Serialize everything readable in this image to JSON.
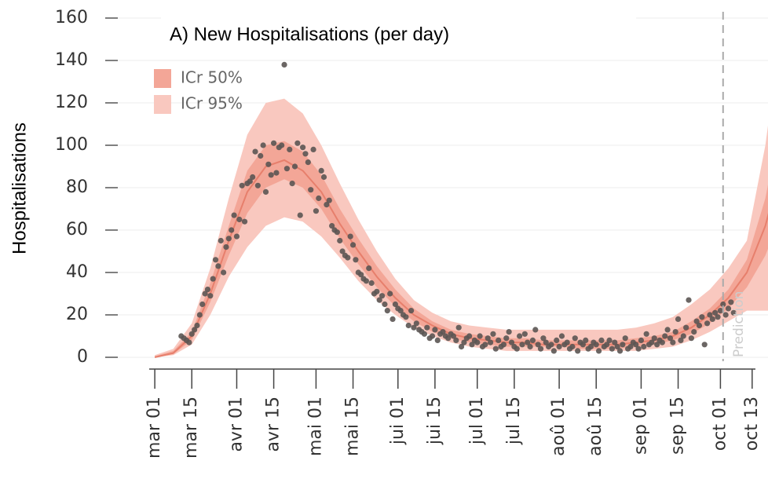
{
  "chart_data": {
    "type": "scatter",
    "subtitle": "A) New Hospitalisations (per day)",
    "ylabel": "Hospitalisations",
    "xlim": [
      -14,
      232
    ],
    "ylim": [
      0,
      160
    ],
    "yticks": [
      0,
      20,
      40,
      60,
      80,
      100,
      120,
      140,
      160
    ],
    "xticks": [
      {
        "value": 0,
        "label": "mar 01"
      },
      {
        "value": 14,
        "label": "mar 15"
      },
      {
        "value": 31,
        "label": "avr 01"
      },
      {
        "value": 45,
        "label": "avr 15"
      },
      {
        "value": 61,
        "label": "mai 01"
      },
      {
        "value": 75,
        "label": "mai 15"
      },
      {
        "value": 92,
        "label": "jui 01"
      },
      {
        "value": 106,
        "label": "jui 15"
      },
      {
        "value": 122,
        "label": "jul 01"
      },
      {
        "value": 136,
        "label": "jul 15"
      },
      {
        "value": 153,
        "label": "aoû 01"
      },
      {
        "value": 167,
        "label": "aoû 15"
      },
      {
        "value": 184,
        "label": "sep 01"
      },
      {
        "value": 198,
        "label": "sep 15"
      },
      {
        "value": 214,
        "label": "oct 01"
      },
      {
        "value": 226,
        "label": "oct 13"
      }
    ],
    "grid": true,
    "prediction": {
      "x": 215,
      "label": "Prediction"
    },
    "points": {
      "color": "#5b5553",
      "x": [
        10,
        11,
        12,
        13,
        14,
        15,
        16,
        17,
        18,
        19,
        20,
        21,
        22,
        23,
        24,
        25,
        26,
        27,
        28,
        29,
        30,
        31,
        32,
        33,
        34,
        35,
        36,
        37,
        38,
        39,
        40,
        41,
        42,
        43,
        44,
        45,
        46,
        47,
        48,
        49,
        50,
        51,
        52,
        53,
        54,
        55,
        56,
        57,
        58,
        59,
        60,
        61,
        62,
        63,
        64,
        65,
        66,
        67,
        68,
        69,
        70,
        71,
        72,
        73,
        74,
        75,
        76,
        77,
        78,
        79,
        80,
        81,
        82,
        83,
        84,
        85,
        86,
        87,
        88,
        89,
        90,
        91,
        92,
        93,
        94,
        95,
        96,
        97,
        98,
        99,
        100,
        101,
        102,
        103,
        104,
        105,
        106,
        107,
        108,
        109,
        110,
        111,
        112,
        113,
        114,
        115,
        116,
        117,
        118,
        119,
        120,
        121,
        122,
        123,
        124,
        125,
        126,
        127,
        128,
        129,
        130,
        131,
        132,
        133,
        134,
        135,
        136,
        137,
        138,
        139,
        140,
        141,
        142,
        143,
        144,
        145,
        146,
        147,
        148,
        149,
        150,
        151,
        152,
        153,
        154,
        155,
        156,
        157,
        158,
        159,
        160,
        161,
        162,
        163,
        164,
        165,
        166,
        167,
        168,
        169,
        170,
        171,
        172,
        173,
        174,
        175,
        176,
        177,
        178,
        179,
        180,
        181,
        182,
        183,
        184,
        185,
        186,
        187,
        188,
        189,
        190,
        191,
        192,
        193,
        194,
        195,
        196,
        197,
        198,
        199,
        200,
        201,
        202,
        203,
        204,
        205,
        206,
        207,
        208,
        209,
        210,
        211,
        212,
        213,
        214,
        215,
        216,
        217,
        218,
        219
      ],
      "values": [
        10,
        9,
        8,
        7,
        11,
        13,
        15,
        20,
        25,
        30,
        32,
        29,
        37,
        46,
        43,
        55,
        40,
        52,
        56,
        60,
        67,
        57,
        65,
        81,
        64,
        82,
        83,
        85,
        97,
        81,
        95,
        100,
        78,
        91,
        86,
        101,
        87,
        99,
        100,
        138,
        89,
        98,
        82,
        90,
        101,
        67,
        99,
        96,
        92,
        79,
        98,
        69,
        75,
        88,
        85,
        72,
        74,
        62,
        60,
        59,
        55,
        50,
        48,
        47,
        57,
        53,
        46,
        40,
        39,
        37,
        36,
        42,
        35,
        30,
        31,
        27,
        29,
        25,
        22,
        30,
        18,
        25,
        23,
        22,
        20,
        19,
        15,
        22,
        14,
        16,
        13,
        12,
        11,
        14,
        9,
        10,
        13,
        8,
        11,
        12,
        10,
        9,
        11,
        10,
        8,
        14,
        5,
        7,
        9,
        10,
        6,
        8,
        7,
        10,
        5,
        6,
        9,
        7,
        11,
        4,
        8,
        5,
        6,
        9,
        12,
        7,
        5,
        4,
        10,
        6,
        11,
        7,
        5,
        8,
        13,
        6,
        4,
        9,
        7,
        5,
        6,
        3,
        8,
        5,
        10,
        6,
        7,
        4,
        5,
        9,
        3,
        7,
        6,
        8,
        4,
        5,
        7,
        6,
        3,
        8,
        5,
        6,
        8,
        4,
        7,
        5,
        3,
        6,
        9,
        4,
        5,
        7,
        6,
        4,
        8,
        5,
        11,
        6,
        7,
        9,
        6,
        8,
        7,
        10,
        13,
        9,
        7,
        12,
        18,
        8,
        10,
        14,
        27,
        9,
        12,
        17,
        15,
        19,
        6,
        16,
        20,
        18,
        21,
        19,
        22,
        25,
        20,
        23,
        26,
        21
      ]
    },
    "band_x": [
      0,
      7,
      14,
      21,
      28,
      35,
      42,
      49,
      56,
      63,
      70,
      77,
      84,
      91,
      98,
      105,
      112,
      119,
      126,
      133,
      140,
      147,
      154,
      161,
      168,
      175,
      182,
      189,
      196,
      203,
      210,
      217,
      224,
      231,
      238
    ],
    "intervals": [
      {
        "name": "ICr 95%",
        "color": "#f9c8bf",
        "upper": [
          1,
          4,
          16,
          42,
          75,
          105,
          120,
          122,
          115,
          100,
          82,
          65,
          50,
          37,
          27,
          21,
          17,
          15,
          14,
          13,
          13,
          13,
          13,
          13,
          13,
          13,
          14,
          16,
          19,
          25,
          32,
          42,
          55,
          100,
          165
        ],
        "lower": [
          0,
          1,
          6,
          20,
          38,
          52,
          62,
          66,
          64,
          57,
          47,
          36,
          27,
          20,
          14,
          10,
          7,
          5,
          4,
          3,
          3,
          3,
          3,
          3,
          3,
          3,
          3,
          4,
          5,
          8,
          12,
          17,
          22,
          22,
          22
        ]
      },
      {
        "name": "ICr 50%",
        "color": "#f3a697",
        "upper": [
          0.5,
          3,
          12,
          35,
          62,
          88,
          100,
          102,
          97,
          86,
          70,
          56,
          43,
          32,
          23,
          17,
          13,
          11,
          10,
          9,
          9,
          8,
          8,
          8,
          8,
          8,
          9,
          10,
          12,
          17,
          23,
          32,
          46,
          75,
          120
        ],
        "lower": [
          0,
          1.5,
          8,
          26,
          48,
          68,
          80,
          84,
          80,
          70,
          56,
          44,
          33,
          24,
          17,
          12,
          9,
          7,
          6,
          5,
          5,
          5,
          5,
          4,
          4,
          4,
          5,
          6,
          8,
          11,
          16,
          23,
          33,
          48,
          70
        ]
      }
    ],
    "median": {
      "color": "#e77f6c",
      "values": [
        0,
        2,
        10,
        30,
        55,
        78,
        90,
        93,
        88,
        78,
        63,
        50,
        38,
        28,
        20,
        15,
        11,
        9,
        8,
        7,
        7,
        6,
        6,
        6,
        6,
        6,
        7,
        8,
        10,
        14,
        20,
        28,
        40,
        62,
        95
      ]
    }
  }
}
